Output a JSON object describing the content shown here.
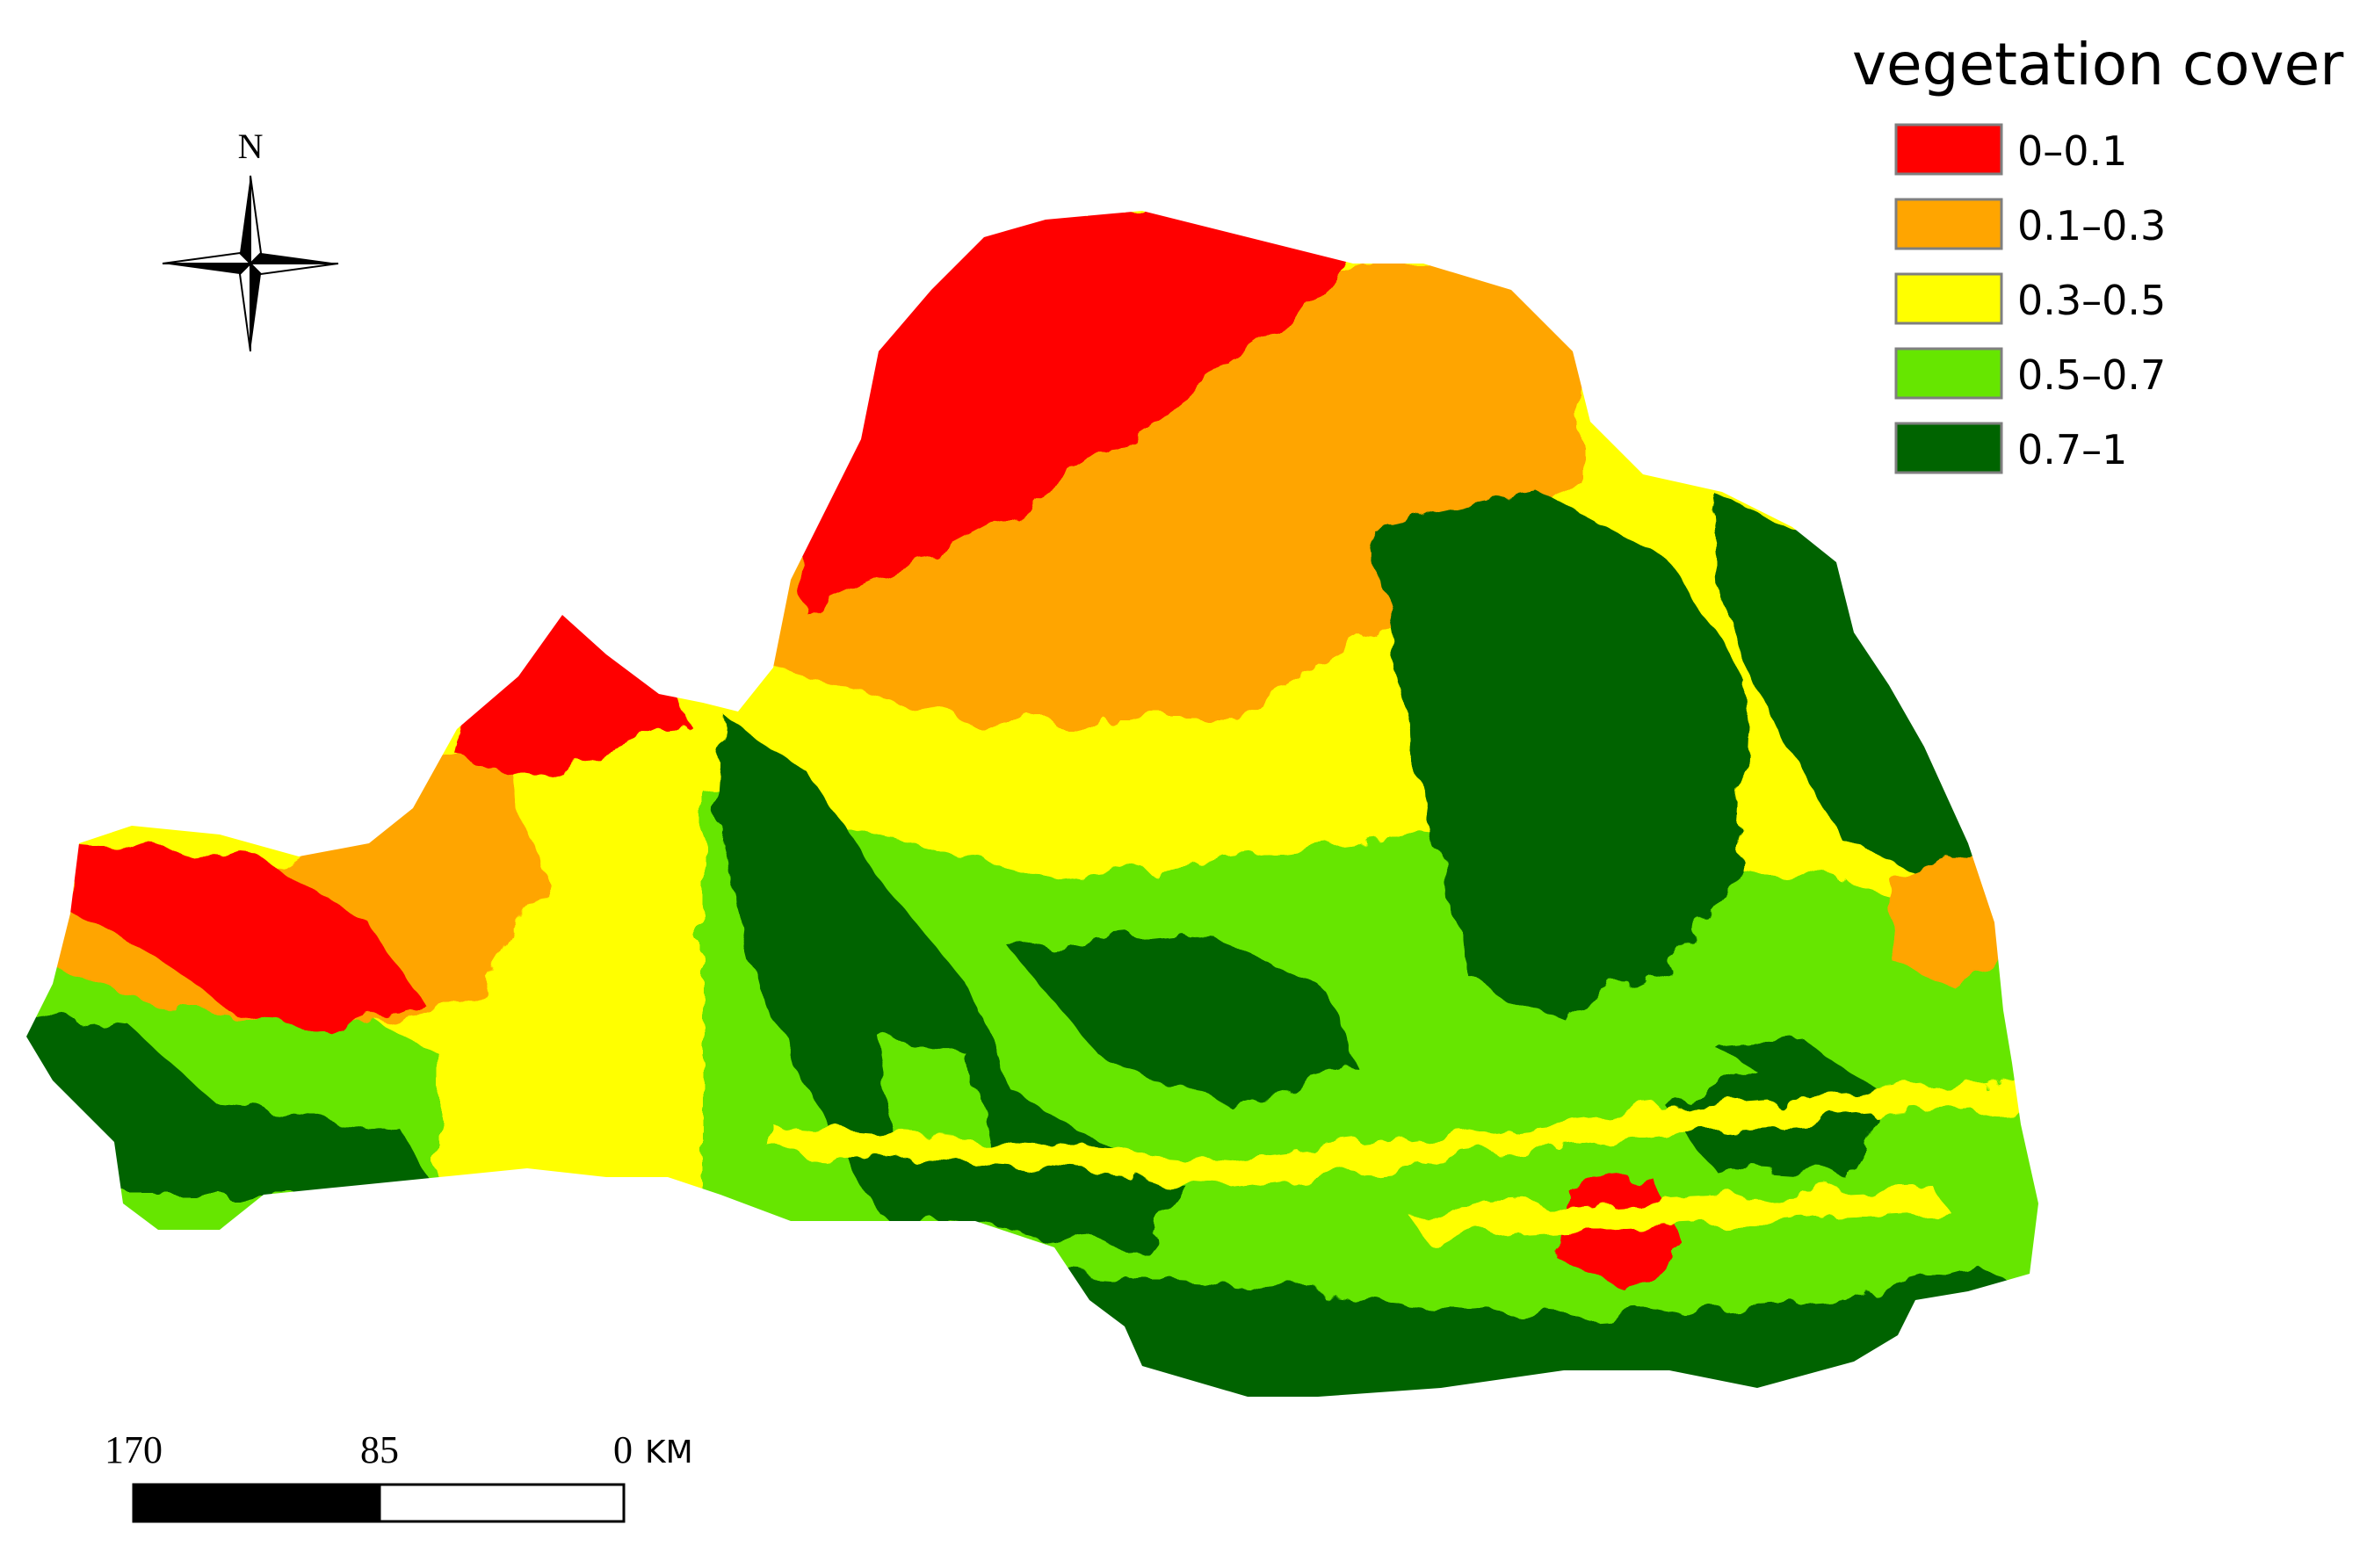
{
  "legend": {
    "title": "vegetation cover",
    "items": [
      {
        "label": "0–0.1",
        "color": "#ff0000"
      },
      {
        "label": "0.1–0.3",
        "color": "#ffa500"
      },
      {
        "label": "0.3–0.5",
        "color": "#ffff00"
      },
      {
        "label": "0.5–0.7",
        "color": "#66e600"
      },
      {
        "label": "0.7–1",
        "color": "#006400"
      }
    ]
  },
  "north_arrow": {
    "label": "N",
    "icon": "north-arrow-icon"
  },
  "scale_bar": {
    "labels": [
      "170",
      "85",
      "0"
    ],
    "unit": "KM"
  }
}
